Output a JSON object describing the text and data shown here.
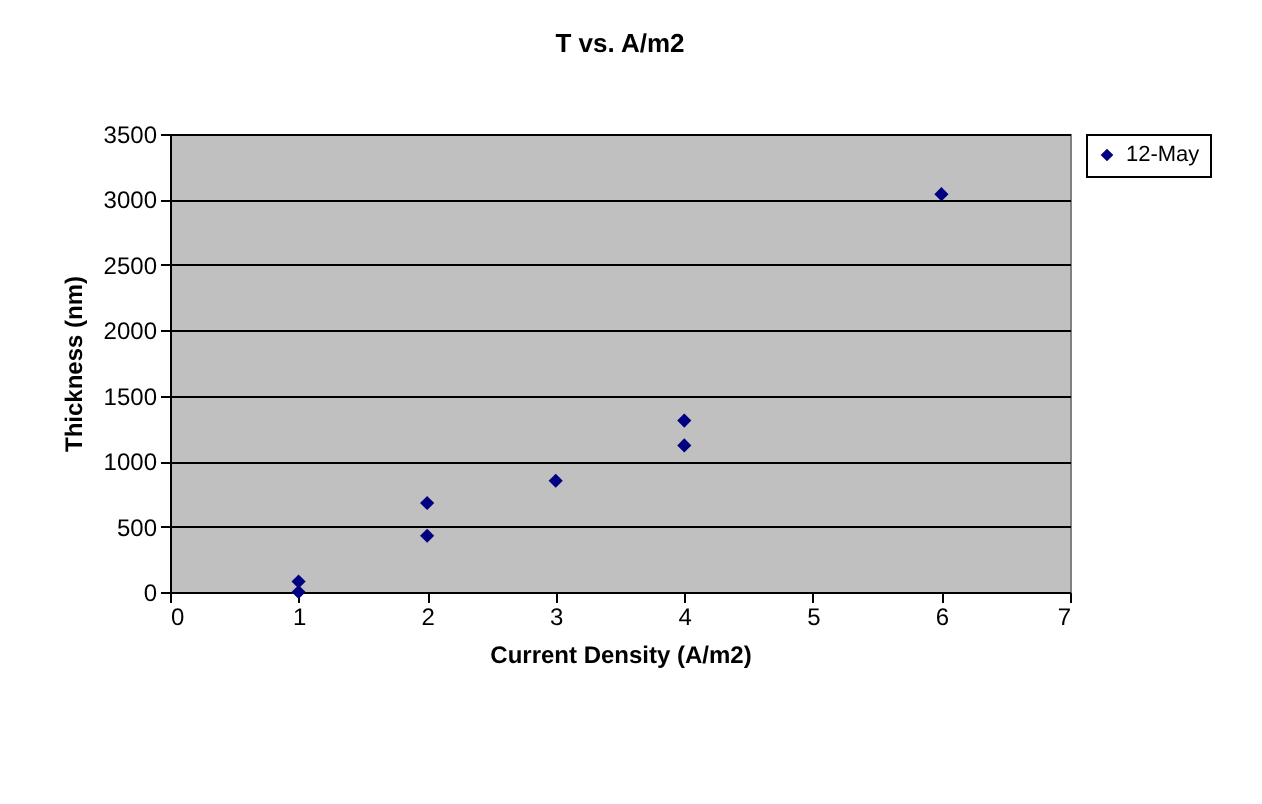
{
  "chart_data": {
    "type": "scatter",
    "title": "T vs. A/m2",
    "xlabel": "Current Density (A/m2)",
    "ylabel": "Thickness (nm)",
    "series": [
      {
        "name": "12-May",
        "color": "#000080",
        "x": [
          1,
          1,
          2,
          2,
          3,
          4,
          4,
          6
        ],
        "values": [
          80,
          0,
          680,
          430,
          850,
          1310,
          1120,
          3040
        ]
      }
    ],
    "xlim": [
      0,
      7
    ],
    "xticks": [
      0,
      1,
      2,
      3,
      4,
      5,
      6,
      7
    ],
    "ylim": [
      0,
      3500
    ],
    "yticks": [
      0,
      500,
      1000,
      1500,
      2000,
      2500,
      3000,
      3500
    ],
    "grid": "y",
    "legend": "right",
    "marker": "diamond"
  }
}
